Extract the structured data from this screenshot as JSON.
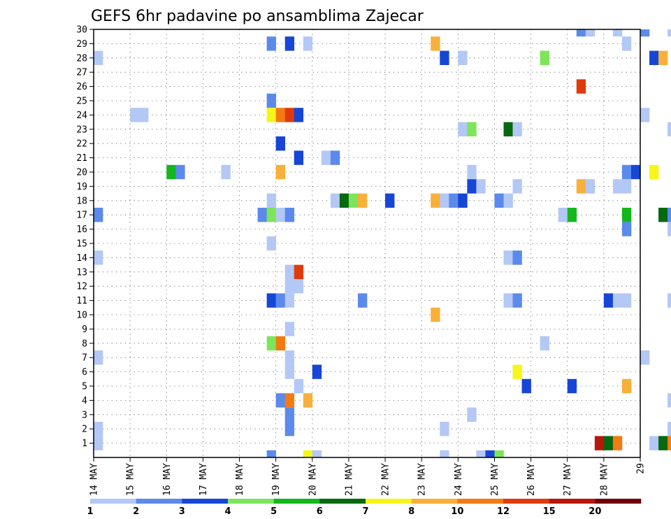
{
  "chart_data": {
    "type": "heatmap",
    "title": "GEFS 6hr padavine po ansamblima Zajecar",
    "x_ticks": [
      "14 MAY",
      "15 MAY",
      "16 MAY",
      "17 MAY",
      "18 MAY",
      "19 MAY",
      "20 MAY",
      "21 MAY",
      "22 MAY",
      "23 MAY",
      "24 MAY",
      "25 MAY",
      "26 MAY",
      "27 MAY",
      "28 MAY",
      "29"
    ],
    "y_ticks": [
      "1",
      "2",
      "3",
      "4",
      "5",
      "6",
      "7",
      "8",
      "9",
      "10",
      "11",
      "12",
      "13",
      "14",
      "15",
      "16",
      "17",
      "18",
      "19",
      "20",
      "21",
      "22",
      "23",
      "24",
      "25",
      "26",
      "27",
      "28",
      "29",
      "30"
    ],
    "steps_per_day": 4,
    "y_range": [
      0,
      30
    ],
    "grid": true,
    "colorbar": {
      "placement": "bottom",
      "labels": [
        "1",
        "2",
        "3",
        "4",
        "5",
        "6",
        "7",
        "8",
        "10",
        "12",
        "15",
        "20"
      ],
      "colors": [
        "#b3c8f5",
        "#5b8aec",
        "#1646d6",
        "#7de55a",
        "#12b81c",
        "#06680f",
        "#f6f619",
        "#f8b03a",
        "#f47a12",
        "#e03a0c",
        "#b7170b",
        "#6e0004"
      ]
    },
    "cells": [
      {
        "t": 0,
        "m": 28,
        "v": 1
      },
      {
        "t": 0,
        "m": 17,
        "v": 2
      },
      {
        "t": 0,
        "m": 14,
        "v": 1
      },
      {
        "t": 0,
        "m": 7,
        "v": 1
      },
      {
        "t": 0,
        "m": 2,
        "v": 1
      },
      {
        "t": 0,
        "m": 1,
        "v": 1
      },
      {
        "t": 4,
        "m": 24,
        "v": 1
      },
      {
        "t": 5,
        "m": 24,
        "v": 1
      },
      {
        "t": 8,
        "m": 20,
        "v": 5
      },
      {
        "t": 9,
        "m": 20,
        "v": 2
      },
      {
        "t": 14,
        "m": 20,
        "v": 1
      },
      {
        "t": 18,
        "m": 17,
        "v": 2
      },
      {
        "t": 19,
        "m": 29,
        "v": 2
      },
      {
        "t": 19,
        "m": 25,
        "v": 2
      },
      {
        "t": 19,
        "m": 24,
        "v": 7
      },
      {
        "t": 19,
        "m": 18,
        "v": 1
      },
      {
        "t": 19,
        "m": 17,
        "v": 4
      },
      {
        "t": 19,
        "m": 15,
        "v": 1
      },
      {
        "t": 19,
        "m": 11,
        "v": 3
      },
      {
        "t": 19,
        "m": 8,
        "v": 4
      },
      {
        "t": 19,
        "m": 0,
        "v": 2
      },
      {
        "t": 20,
        "m": 24,
        "v": 10
      },
      {
        "t": 20,
        "m": 22,
        "v": 3
      },
      {
        "t": 20,
        "m": 20,
        "v": 8
      },
      {
        "t": 20,
        "m": 17,
        "v": 1
      },
      {
        "t": 20,
        "m": 11,
        "v": 2
      },
      {
        "t": 20,
        "m": 8,
        "v": 10
      },
      {
        "t": 20,
        "m": 4,
        "v": 2
      },
      {
        "t": 21,
        "m": 29,
        "v": 3
      },
      {
        "t": 21,
        "m": 24,
        "v": 12
      },
      {
        "t": 21,
        "m": 17,
        "v": 2
      },
      {
        "t": 21,
        "m": 13,
        "v": 1
      },
      {
        "t": 21,
        "m": 12,
        "v": 1
      },
      {
        "t": 21,
        "m": 11,
        "v": 1
      },
      {
        "t": 21,
        "m": 9,
        "v": 1
      },
      {
        "t": 21,
        "m": 7,
        "v": 1
      },
      {
        "t": 21,
        "m": 6,
        "v": 1
      },
      {
        "t": 21,
        "m": 4,
        "v": 10
      },
      {
        "t": 21,
        "m": 3,
        "v": 2
      },
      {
        "t": 21,
        "m": 2,
        "v": 2
      },
      {
        "t": 22,
        "m": 24,
        "v": 3
      },
      {
        "t": 22,
        "m": 21,
        "v": 3
      },
      {
        "t": 22,
        "m": 13,
        "v": 12
      },
      {
        "t": 22,
        "m": 12,
        "v": 1
      },
      {
        "t": 22,
        "m": 5,
        "v": 1
      },
      {
        "t": 23,
        "m": 29,
        "v": 1
      },
      {
        "t": 23,
        "m": 4,
        "v": 8
      },
      {
        "t": 23,
        "m": 0,
        "v": 7
      },
      {
        "t": 24,
        "m": 6,
        "v": 3
      },
      {
        "t": 24,
        "m": 0,
        "v": 1
      },
      {
        "t": 25,
        "m": 21,
        "v": 1
      },
      {
        "t": 26,
        "m": 21,
        "v": 2
      },
      {
        "t": 26,
        "m": 18,
        "v": 1
      },
      {
        "t": 27,
        "m": 18,
        "v": 6
      },
      {
        "t": 28,
        "m": 18,
        "v": 4
      },
      {
        "t": 29,
        "m": 18,
        "v": 8
      },
      {
        "t": 29,
        "m": 11,
        "v": 2
      },
      {
        "t": 32,
        "m": 18,
        "v": 3
      },
      {
        "t": 37,
        "m": 29,
        "v": 8
      },
      {
        "t": 37,
        "m": 18,
        "v": 8
      },
      {
        "t": 37,
        "m": 10,
        "v": 8
      },
      {
        "t": 38,
        "m": 28,
        "v": 3
      },
      {
        "t": 38,
        "m": 18,
        "v": 1
      },
      {
        "t": 38,
        "m": 2,
        "v": 1
      },
      {
        "t": 38,
        "m": 0,
        "v": 1
      },
      {
        "t": 39,
        "m": 18,
        "v": 2
      },
      {
        "t": 40,
        "m": 28,
        "v": 1
      },
      {
        "t": 40,
        "m": 23,
        "v": 1
      },
      {
        "t": 40,
        "m": 18,
        "v": 3
      },
      {
        "t": 41,
        "m": 23,
        "v": 4
      },
      {
        "t": 41,
        "m": 20,
        "v": 1
      },
      {
        "t": 41,
        "m": 19,
        "v": 3
      },
      {
        "t": 41,
        "m": 3,
        "v": 1
      },
      {
        "t": 42,
        "m": 19,
        "v": 1
      },
      {
        "t": 42,
        "m": 0,
        "v": 1
      },
      {
        "t": 43,
        "m": 0,
        "v": 3
      },
      {
        "t": 44,
        "m": 18,
        "v": 2
      },
      {
        "t": 44,
        "m": 0,
        "v": 4
      },
      {
        "t": 45,
        "m": 23,
        "v": 6
      },
      {
        "t": 45,
        "m": 18,
        "v": 1
      },
      {
        "t": 45,
        "m": 14,
        "v": 1
      },
      {
        "t": 45,
        "m": 11,
        "v": 1
      },
      {
        "t": 46,
        "m": 23,
        "v": 1
      },
      {
        "t": 46,
        "m": 19,
        "v": 1
      },
      {
        "t": 46,
        "m": 14,
        "v": 2
      },
      {
        "t": 46,
        "m": 11,
        "v": 2
      },
      {
        "t": 46,
        "m": 6,
        "v": 7
      },
      {
        "t": 47,
        "m": 5,
        "v": 3
      },
      {
        "t": 49,
        "m": 28,
        "v": 4
      },
      {
        "t": 49,
        "m": 8,
        "v": 1
      },
      {
        "t": 51,
        "m": 17,
        "v": 1
      },
      {
        "t": 52,
        "m": 17,
        "v": 5
      },
      {
        "t": 52,
        "m": 5,
        "v": 3
      },
      {
        "t": 53,
        "m": 30,
        "v": 2
      },
      {
        "t": 53,
        "m": 26,
        "v": 14
      },
      {
        "t": 53,
        "m": 19,
        "v": 9
      },
      {
        "t": 54,
        "m": 30,
        "v": 1
      },
      {
        "t": 54,
        "m": 19,
        "v": 1
      },
      {
        "t": 55,
        "m": 1,
        "v": 15
      },
      {
        "t": 56,
        "m": 11,
        "v": 3
      },
      {
        "t": 56,
        "m": 1,
        "v": 6
      },
      {
        "t": 57,
        "m": 30,
        "v": 1
      },
      {
        "t": 57,
        "m": 19,
        "v": 1
      },
      {
        "t": 57,
        "m": 11,
        "v": 1
      },
      {
        "t": 57,
        "m": 1,
        "v": 10
      },
      {
        "t": 58,
        "m": 29,
        "v": 1
      },
      {
        "t": 58,
        "m": 20,
        "v": 2
      },
      {
        "t": 58,
        "m": 19,
        "v": 1
      },
      {
        "t": 58,
        "m": 17,
        "v": 5
      },
      {
        "t": 58,
        "m": 16,
        "v": 2
      },
      {
        "t": 58,
        "m": 11,
        "v": 1
      },
      {
        "t": 58,
        "m": 5,
        "v": 8
      },
      {
        "t": 59,
        "m": 20,
        "v": 3
      },
      {
        "t": 60,
        "m": 30,
        "v": 2
      },
      {
        "t": 60,
        "m": 24,
        "v": 1
      },
      {
        "t": 60,
        "m": 7,
        "v": 1
      },
      {
        "t": 61,
        "m": 28,
        "v": 3
      },
      {
        "t": 61,
        "m": 20,
        "v": 7
      },
      {
        "t": 61,
        "m": 1,
        "v": 1
      },
      {
        "t": 62,
        "m": 28,
        "v": 8
      },
      {
        "t": 62,
        "m": 17,
        "v": 6
      },
      {
        "t": 62,
        "m": 1,
        "v": 6
      },
      {
        "t": 63,
        "m": 30,
        "v": 1
      },
      {
        "t": 63,
        "m": 23,
        "v": 1
      },
      {
        "t": 63,
        "m": 17,
        "v": 2
      },
      {
        "t": 63,
        "m": 16,
        "v": 1
      },
      {
        "t": 63,
        "m": 11,
        "v": 1
      },
      {
        "t": 63,
        "m": 4,
        "v": 1
      },
      {
        "t": 63,
        "m": 2,
        "v": 1
      },
      {
        "t": 63,
        "m": 1,
        "v": 10
      },
      {
        "t": 64,
        "m": 30,
        "v": 12
      },
      {
        "t": 64,
        "m": 17,
        "v": 12
      },
      {
        "t": 64,
        "m": 7,
        "v": 5
      },
      {
        "t": 64,
        "m": 4,
        "v": 1
      },
      {
        "t": 64,
        "m": 1,
        "v": 20
      },
      {
        "t": 66,
        "m": 28,
        "v": 2
      },
      {
        "t": 66,
        "m": 25,
        "v": 3
      },
      {
        "t": 66,
        "m": 16,
        "v": 5
      },
      {
        "t": 67,
        "m": 28,
        "v": 20
      },
      {
        "t": 67,
        "m": 25,
        "v": 1
      },
      {
        "t": 67,
        "m": 18,
        "v": 2
      },
      {
        "t": 67,
        "m": 16,
        "v": 5
      },
      {
        "t": 67,
        "m": 11,
        "v": 5
      },
      {
        "t": 67,
        "m": 7,
        "v": 6
      },
      {
        "t": 67,
        "m": 2,
        "v": 3
      },
      {
        "t": 68,
        "m": 28,
        "v": 5
      },
      {
        "t": 68,
        "m": 18,
        "v": 1
      },
      {
        "t": 68,
        "m": 11,
        "v": 2
      },
      {
        "t": 68,
        "m": 7,
        "v": 1
      },
      {
        "t": 69,
        "m": 0,
        "v": 1
      },
      {
        "t": 70,
        "m": 19,
        "v": 5
      },
      {
        "t": 70,
        "m": 11,
        "v": 2
      },
      {
        "t": 70,
        "m": 0,
        "v": 5
      },
      {
        "t": 71,
        "m": 22,
        "v": 2
      },
      {
        "t": 71,
        "m": 19,
        "v": 6
      },
      {
        "t": 71,
        "m": 16,
        "v": 6
      },
      {
        "t": 71,
        "m": 0,
        "v": 6
      }
    ]
  }
}
